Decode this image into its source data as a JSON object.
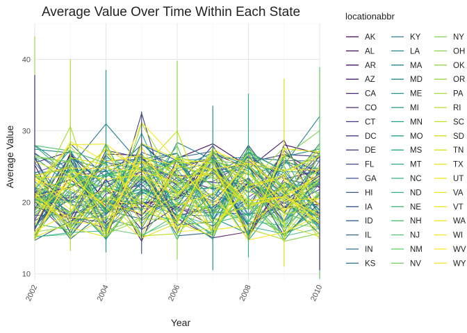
{
  "chart_data": {
    "type": "line",
    "title": "Average Value Over Time Within Each State",
    "xlabel": "Year",
    "ylabel": "Average Value",
    "xlim": [
      2002,
      2010
    ],
    "ylim": [
      9,
      45
    ],
    "x_ticks": [
      "2002",
      "2004",
      "2006",
      "2008",
      "2010"
    ],
    "y_ticks": [
      "10",
      "20",
      "30",
      "40"
    ],
    "grid": true,
    "legend": {
      "title": "locationabbr",
      "position": "right",
      "columns": 3
    },
    "color_scale": "viridis",
    "x": [
      2002,
      2003,
      2004,
      2005,
      2006,
      2007,
      2008,
      2009,
      2010
    ],
    "series": [
      {
        "name": "AK",
        "color": "#440154"
      },
      {
        "name": "AL",
        "color": "#460a5d"
      },
      {
        "name": "AR",
        "color": "#471365"
      },
      {
        "name": "AZ",
        "color": "#481b6d"
      },
      {
        "name": "CA",
        "color": "#482374"
      },
      {
        "name": "CO",
        "color": "#472a7a"
      },
      {
        "name": "CT",
        "color": "#46327e"
      },
      {
        "name": "DC",
        "color": "#443a83"
      },
      {
        "name": "DE",
        "color": "#424186"
      },
      {
        "name": "FL",
        "color": "#3f4788"
      },
      {
        "name": "GA",
        "color": "#3c4f8a"
      },
      {
        "name": "HI",
        "color": "#39558c"
      },
      {
        "name": "IA",
        "color": "#365c8d"
      },
      {
        "name": "ID",
        "color": "#33638d"
      },
      {
        "name": "IL",
        "color": "#30698e"
      },
      {
        "name": "IN",
        "color": "#2e6f8e"
      },
      {
        "name": "KS",
        "color": "#2b758e"
      },
      {
        "name": "KY",
        "color": "#297b8e"
      },
      {
        "name": "LA",
        "color": "#27808e"
      },
      {
        "name": "MA",
        "color": "#25868e"
      },
      {
        "name": "MD",
        "color": "#238c8d"
      },
      {
        "name": "ME",
        "color": "#21918c"
      },
      {
        "name": "MI",
        "color": "#1f978b"
      },
      {
        "name": "MN",
        "color": "#1f9d89"
      },
      {
        "name": "MO",
        "color": "#20a386"
      },
      {
        "name": "MS",
        "color": "#22a884"
      },
      {
        "name": "MT",
        "color": "#27ad81"
      },
      {
        "name": "NC",
        "color": "#2eb37c"
      },
      {
        "name": "ND",
        "color": "#35b779"
      },
      {
        "name": "NE",
        "color": "#3fbc73"
      },
      {
        "name": "NH",
        "color": "#4ac16d"
      },
      {
        "name": "NJ",
        "color": "#54c568"
      },
      {
        "name": "NM",
        "color": "#5ec962"
      },
      {
        "name": "NV",
        "color": "#6ccd5a"
      },
      {
        "name": "NY",
        "color": "#7ad151"
      },
      {
        "name": "OH",
        "color": "#84d44b"
      },
      {
        "name": "OK",
        "color": "#90d743"
      },
      {
        "name": "OR",
        "color": "#9dd93b"
      },
      {
        "name": "PA",
        "color": "#a8db34"
      },
      {
        "name": "RI",
        "color": "#b5de2b"
      },
      {
        "name": "SC",
        "color": "#c0df25"
      },
      {
        "name": "SD",
        "color": "#cde11d"
      },
      {
        "name": "TN",
        "color": "#d8e219"
      },
      {
        "name": "TX",
        "color": "#e5e419"
      },
      {
        "name": "UT",
        "color": "#eae51a"
      },
      {
        "name": "VA",
        "color": "#f0e51c"
      },
      {
        "name": "VT",
        "color": "#f5e61f"
      },
      {
        "name": "WA",
        "color": "#f8e621"
      },
      {
        "name": "WI",
        "color": "#fbe723"
      },
      {
        "name": "WV",
        "color": "#fde725"
      },
      {
        "name": "WY",
        "color": "#fde725"
      }
    ]
  }
}
